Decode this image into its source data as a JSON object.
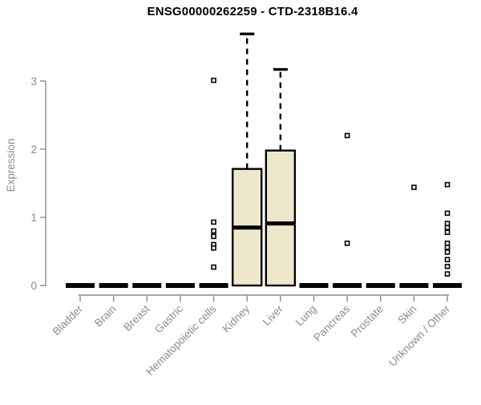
{
  "chart_data": {
    "type": "boxplot",
    "title": "ENSG00000262259 - CTD-2318B16.4",
    "xlabel": "",
    "ylabel": "Expression",
    "ylim": [
      0,
      3.75
    ],
    "yticks": [
      0,
      1,
      2,
      3
    ],
    "grid": false,
    "legend": false,
    "categories": [
      "Bladder",
      "Brain",
      "Breast",
      "Gastric",
      "Hematopoietic cells",
      "Kidney",
      "Liver",
      "Lung",
      "Pancreas",
      "Prostate",
      "Skin",
      "Unknown / Other"
    ],
    "boxes": [
      {
        "category": "Bladder",
        "q1": 0,
        "median": 0,
        "q3": 0,
        "whisker_low": 0,
        "whisker_high": 0,
        "outliers": []
      },
      {
        "category": "Brain",
        "q1": 0,
        "median": 0,
        "q3": 0,
        "whisker_low": 0,
        "whisker_high": 0,
        "outliers": []
      },
      {
        "category": "Breast",
        "q1": 0,
        "median": 0,
        "q3": 0,
        "whisker_low": 0,
        "whisker_high": 0,
        "outliers": []
      },
      {
        "category": "Gastric",
        "q1": 0,
        "median": 0,
        "q3": 0,
        "whisker_low": 0,
        "whisker_high": 0,
        "outliers": []
      },
      {
        "category": "Hematopoietic cells",
        "q1": 0,
        "median": 0,
        "q3": 0,
        "whisker_low": 0,
        "whisker_high": 0,
        "outliers": [
          3.01,
          0.93,
          0.8,
          0.72,
          0.6,
          0.55,
          0.27
        ]
      },
      {
        "category": "Kidney",
        "q1": 0,
        "median": 0.85,
        "q3": 1.71,
        "whisker_low": 0,
        "whisker_high": 3.69,
        "outliers": []
      },
      {
        "category": "Liver",
        "q1": 0,
        "median": 0.91,
        "q3": 1.98,
        "whisker_low": 0,
        "whisker_high": 3.17,
        "outliers": []
      },
      {
        "category": "Lung",
        "q1": 0,
        "median": 0,
        "q3": 0,
        "whisker_low": 0,
        "whisker_high": 0,
        "outliers": []
      },
      {
        "category": "Pancreas",
        "q1": 0,
        "median": 0,
        "q3": 0,
        "whisker_low": 0,
        "whisker_high": 0,
        "outliers": [
          2.2,
          0.62
        ]
      },
      {
        "category": "Prostate",
        "q1": 0,
        "median": 0,
        "q3": 0,
        "whisker_low": 0,
        "whisker_high": 0,
        "outliers": []
      },
      {
        "category": "Skin",
        "q1": 0,
        "median": 0,
        "q3": 0,
        "whisker_low": 0,
        "whisker_high": 0,
        "outliers": [
          1.44
        ]
      },
      {
        "category": "Unknown / Other",
        "q1": 0,
        "median": 0,
        "q3": 0,
        "whisker_low": 0,
        "whisker_high": 0,
        "outliers": [
          1.48,
          1.06,
          0.91,
          0.85,
          0.78,
          0.62,
          0.56,
          0.49,
          0.38,
          0.28,
          0.17
        ]
      }
    ],
    "colors": {
      "box_fill": "#ede8cc",
      "box_border": "#000000",
      "median": "#000000",
      "whisker": "#000000",
      "outlier_stroke": "#000000",
      "outlier_fill": "#ffffff",
      "axis": "#8b8b8b",
      "tick_label": "#8b8b8b",
      "title": "#000000",
      "background": "#ffffff"
    }
  }
}
